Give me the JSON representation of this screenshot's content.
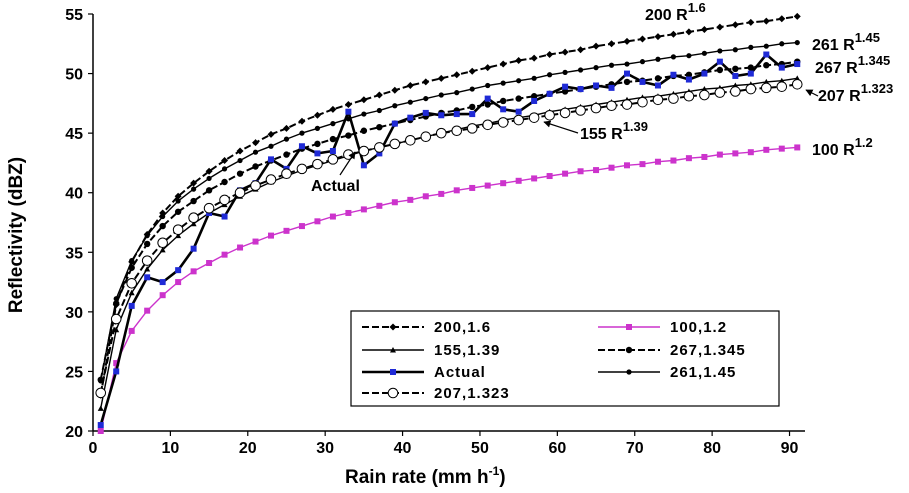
{
  "chart_data": {
    "type": "line",
    "xlabel": "Rain rate (mm h",
    "xlabel_sup": "-1",
    "xlabel_close": ")",
    "ylabel": "Reflectivity (dBZ)",
    "xlim": [
      0,
      92
    ],
    "ylim": [
      20,
      55
    ],
    "xticks": [
      0,
      10,
      20,
      30,
      40,
      50,
      60,
      70,
      80,
      90
    ],
    "yticks": [
      20,
      25,
      30,
      35,
      40,
      45,
      50,
      55
    ],
    "x": [
      1,
      3,
      5,
      7,
      9,
      11,
      13,
      15,
      17,
      19,
      21,
      23,
      25,
      27,
      29,
      31,
      33,
      35,
      37,
      39,
      41,
      43,
      45,
      47,
      49,
      51,
      53,
      55,
      57,
      59,
      61,
      63,
      65,
      67,
      69,
      71,
      73,
      75,
      77,
      79,
      81,
      83,
      85,
      87,
      89,
      91
    ],
    "series": [
      {
        "name": "200,1.6",
        "style": "dash",
        "marker": "diamond",
        "color": "#000000",
        "values": [
          23.0,
          30.6,
          34.2,
          36.5,
          38.3,
          39.7,
          40.8,
          41.8,
          42.7,
          43.5,
          44.2,
          44.9,
          45.4,
          46.0,
          46.5,
          47.0,
          47.4,
          47.8,
          48.2,
          48.6,
          49.0,
          49.3,
          49.6,
          49.9,
          50.2,
          50.5,
          50.8,
          51.1,
          51.3,
          51.6,
          51.8,
          52.0,
          52.3,
          52.5,
          52.7,
          52.9,
          53.1,
          53.3,
          53.5,
          53.7,
          53.9,
          54.1,
          54.3,
          54.4,
          54.6,
          54.8
        ]
      },
      {
        "name": "100,1.2",
        "style": "solid",
        "marker": "square",
        "color": "#cc33cc",
        "values": [
          20.0,
          25.7,
          28.4,
          30.1,
          31.4,
          32.5,
          33.4,
          34.1,
          34.8,
          35.4,
          35.9,
          36.4,
          36.8,
          37.2,
          37.6,
          38.0,
          38.3,
          38.6,
          38.9,
          39.2,
          39.4,
          39.7,
          39.9,
          40.2,
          40.4,
          40.6,
          40.8,
          41.0,
          41.2,
          41.4,
          41.6,
          41.8,
          41.9,
          42.1,
          42.3,
          42.4,
          42.6,
          42.7,
          42.9,
          43.0,
          43.2,
          43.3,
          43.4,
          43.6,
          43.7,
          43.8
        ]
      },
      {
        "name": "155,1.39",
        "style": "solid",
        "marker": "triangle",
        "color": "#000000",
        "values": [
          21.9,
          28.5,
          31.6,
          33.6,
          35.2,
          36.4,
          37.4,
          38.3,
          39.0,
          39.7,
          40.3,
          40.9,
          41.4,
          41.9,
          42.3,
          42.7,
          43.1,
          43.5,
          43.8,
          44.1,
          44.4,
          44.7,
          45.0,
          45.3,
          45.6,
          45.8,
          46.1,
          46.3,
          46.5,
          46.8,
          47.0,
          47.2,
          47.4,
          47.6,
          47.8,
          48.0,
          48.1,
          48.3,
          48.5,
          48.7,
          48.8,
          49.0,
          49.1,
          49.3,
          49.4,
          49.6
        ]
      },
      {
        "name": "267,1.345",
        "style": "dash",
        "marker": "circle",
        "color": "#000000",
        "values": [
          24.3,
          30.7,
          33.7,
          35.7,
          37.2,
          38.4,
          39.3,
          40.2,
          40.9,
          41.6,
          42.2,
          42.7,
          43.2,
          43.7,
          44.1,
          44.5,
          44.8,
          45.2,
          45.5,
          45.8,
          46.1,
          46.4,
          46.7,
          46.9,
          47.2,
          47.4,
          47.7,
          47.9,
          48.1,
          48.3,
          48.5,
          48.7,
          48.9,
          49.1,
          49.3,
          49.4,
          49.6,
          49.8,
          49.9,
          50.1,
          50.3,
          50.4,
          50.5,
          50.7,
          50.8,
          51.0
        ]
      },
      {
        "name": "Actual",
        "style": "solid-thick",
        "marker": "square",
        "color": "#000000",
        "marker_color": "#1f2ad6",
        "values": [
          20.5,
          25.0,
          30.5,
          32.9,
          32.5,
          33.5,
          35.3,
          38.3,
          38.0,
          40.2,
          40.8,
          42.8,
          42.0,
          43.9,
          43.3,
          43.5,
          46.8,
          42.3,
          43.3,
          45.8,
          46.3,
          46.7,
          46.5,
          46.6,
          46.6,
          47.9,
          47.0,
          46.8,
          47.7,
          48.3,
          48.9,
          48.7,
          49.0,
          48.8,
          50.0,
          49.3,
          49.0,
          49.9,
          49.5,
          50.0,
          51.0,
          49.8,
          50.0,
          51.6,
          50.5,
          50.8
        ]
      },
      {
        "name": "261,1.45",
        "style": "solid",
        "marker": "dot",
        "color": "#000000",
        "values": [
          24.2,
          31.1,
          34.3,
          36.4,
          38.0,
          39.3,
          40.3,
          41.2,
          42.0,
          42.7,
          43.4,
          43.9,
          44.5,
          45.0,
          45.4,
          45.8,
          46.2,
          46.6,
          46.9,
          47.3,
          47.6,
          47.9,
          48.2,
          48.4,
          48.7,
          49.0,
          49.2,
          49.4,
          49.6,
          49.9,
          50.1,
          50.3,
          50.5,
          50.7,
          50.8,
          51.0,
          51.2,
          51.4,
          51.5,
          51.7,
          51.9,
          52.0,
          52.2,
          52.3,
          52.5,
          52.6
        ]
      },
      {
        "name": "207,1.323",
        "style": "dash",
        "marker": "open-circle",
        "color": "#000000",
        "values": [
          23.2,
          29.4,
          32.4,
          34.3,
          35.8,
          36.9,
          37.9,
          38.7,
          39.4,
          40.0,
          40.6,
          41.1,
          41.6,
          42.0,
          42.4,
          42.8,
          43.2,
          43.5,
          43.8,
          44.1,
          44.4,
          44.7,
          45.0,
          45.2,
          45.4,
          45.7,
          45.9,
          46.1,
          46.3,
          46.5,
          46.7,
          46.9,
          47.1,
          47.3,
          47.4,
          47.6,
          47.8,
          47.9,
          48.1,
          48.2,
          48.4,
          48.5,
          48.7,
          48.8,
          48.9,
          49.1
        ]
      }
    ],
    "annotations": [
      {
        "text": "200 R",
        "sup": "1.6",
        "x": 62,
        "y": 54.8
      },
      {
        "text": "261 R",
        "sup": "1.45",
        "x": 92,
        "y": 53.0
      },
      {
        "text": "267 R",
        "sup": "1.345",
        "x": 92,
        "y": 50.5
      },
      {
        "text": "207 R",
        "sup": "1.323",
        "x": 92,
        "y": 48.3
      },
      {
        "text": "155 R",
        "sup": "1.39",
        "x": 65,
        "y": 45.5
      },
      {
        "text": "100 R",
        "sup": "1.2",
        "x": 92,
        "y": 43.8
      },
      {
        "text": "Actual",
        "sup": "",
        "x": 30,
        "y": 40.5
      }
    ],
    "legend": {
      "placement": "bottom-right",
      "entries": [
        {
          "label": "200,1.6",
          "series": "200,1.6"
        },
        {
          "label": "100,1.2",
          "series": "100,1.2"
        },
        {
          "label": "155,1.39",
          "series": "155,1.39"
        },
        {
          "label": "267,1.345",
          "series": "267,1.345"
        },
        {
          "label": "Actual",
          "series": "Actual"
        },
        {
          "label": "261,1.45",
          "series": "261,1.45"
        },
        {
          "label": "207,1.323",
          "series": "207,1.323"
        }
      ]
    }
  }
}
